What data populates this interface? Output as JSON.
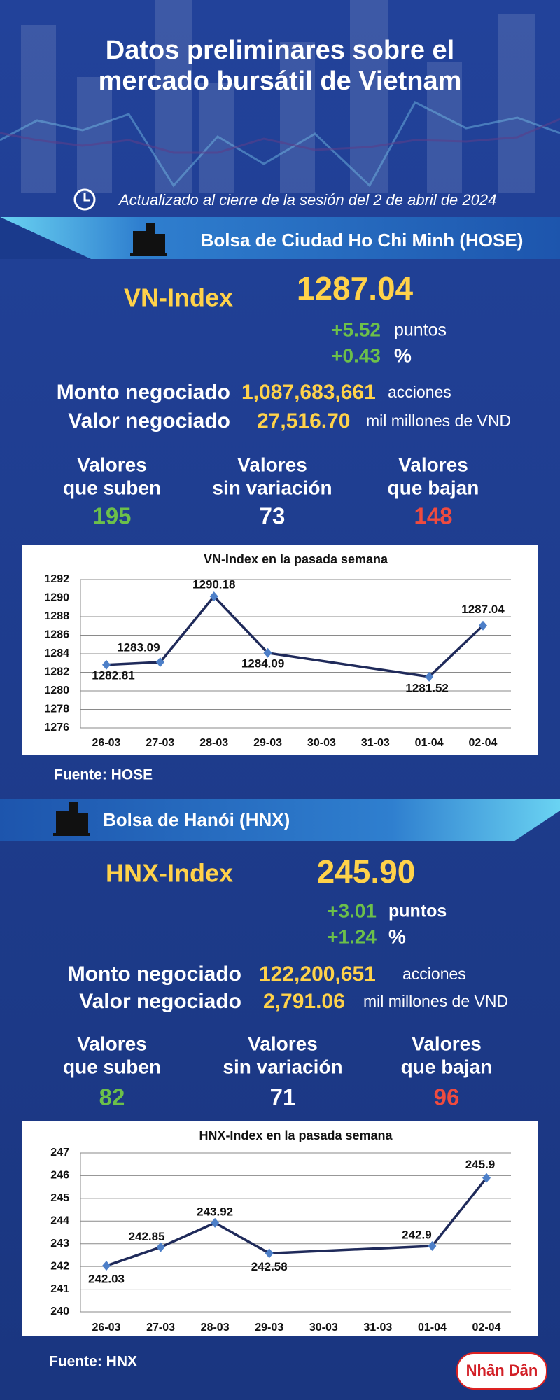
{
  "header": {
    "title_lines": [
      "Datos preliminares sobre el",
      "mercado bursátil de Vietnam"
    ],
    "updated": "Actualizado al cierre de la sesión del 2 de abril de 2024"
  },
  "hose": {
    "exchange": "Bolsa de Ciudad Ho Chi Minh (HOSE)",
    "index_name": "VN-Index",
    "index_value": "1287.04",
    "change_points": "+5.52",
    "points_unit": "puntos",
    "change_percent": "+0.43",
    "percent_unit": "%",
    "volume_label": "Monto negociado",
    "volume": "1,087,683,661",
    "volume_unit": "acciones",
    "value_label": "Valor negociado",
    "value": "27,516.70",
    "value_unit": "mil millones de VND",
    "breadth": [
      {
        "label_lines": [
          "Valores",
          "que suben"
        ],
        "count": 195
      },
      {
        "label_lines": [
          "Valores",
          "sin variación"
        ],
        "count": 73
      },
      {
        "label_lines": [
          "Valores",
          "que bajan"
        ],
        "count": 148
      }
    ],
    "source": "Fuente: HOSE"
  },
  "hnx": {
    "exchange": "Bolsa de Hanói (HNX)",
    "index_name": "HNX-Index",
    "index_value": "245.90",
    "change_points": "+3.01",
    "points_unit": "puntos",
    "change_percent": "+1.24",
    "percent_unit": "%",
    "volume_label": "Monto negociado",
    "volume": "122,200,651",
    "volume_unit": "acciones",
    "value_label": "Valor negociado",
    "value": "2,791.06",
    "value_unit": "mil millones de VND",
    "breadth": [
      {
        "label_lines": [
          "Valores",
          "que suben"
        ],
        "count": 82
      },
      {
        "label_lines": [
          "Valores",
          "sin variación"
        ],
        "count": 71
      },
      {
        "label_lines": [
          "Valores",
          "que bajan"
        ],
        "count": 96
      }
    ],
    "source": "Fuente: HNX"
  },
  "chart_data": [
    {
      "type": "line",
      "title": "VN-Index en la pasada semana",
      "categories": [
        "26-03",
        "27-03",
        "28-03",
        "29-03",
        "30-03",
        "31-03",
        "01-04",
        "02-04"
      ],
      "values": [
        1282.81,
        1283.09,
        1290.18,
        1284.09,
        null,
        null,
        1281.52,
        1287.04
      ],
      "ylim": [
        1276,
        1292
      ],
      "yticks": [
        1276,
        1278,
        1280,
        1282,
        1284,
        1286,
        1288,
        1290,
        1292
      ],
      "grid": true,
      "color": "#1f2a5a",
      "marker_color": "#4d7fc8"
    },
    {
      "type": "line",
      "title": "HNX-Index en la pasada semana",
      "categories": [
        "26-03",
        "27-03",
        "28-03",
        "29-03",
        "30-03",
        "31-03",
        "01-04",
        "02-04"
      ],
      "values": [
        242.03,
        242.85,
        243.92,
        242.58,
        null,
        null,
        242.9,
        245.9
      ],
      "ylim": [
        240,
        247
      ],
      "yticks": [
        240,
        241,
        242,
        243,
        244,
        245,
        246,
        247
      ],
      "grid": true,
      "color": "#1f2a5a",
      "marker_color": "#4d7fc8"
    }
  ],
  "logo": "Nhân Dân"
}
